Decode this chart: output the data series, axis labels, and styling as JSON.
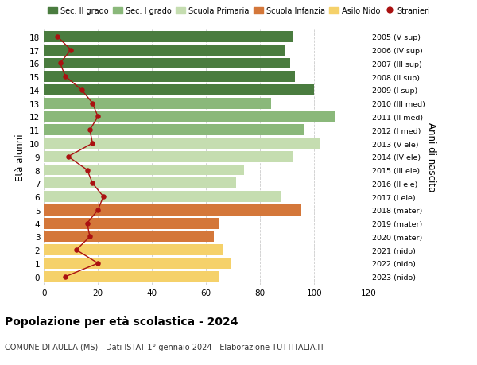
{
  "ages": [
    0,
    1,
    2,
    3,
    4,
    5,
    6,
    7,
    8,
    9,
    10,
    11,
    12,
    13,
    14,
    15,
    16,
    17,
    18
  ],
  "bar_values": [
    65,
    69,
    66,
    63,
    65,
    95,
    88,
    71,
    74,
    92,
    102,
    96,
    108,
    84,
    100,
    93,
    91,
    89,
    92
  ],
  "stranieri": [
    8,
    20,
    12,
    17,
    16,
    20,
    22,
    18,
    16,
    9,
    18,
    17,
    20,
    18,
    14,
    8,
    6,
    10,
    5
  ],
  "right_labels": [
    "2023 (nido)",
    "2022 (nido)",
    "2021 (nido)",
    "2020 (mater)",
    "2019 (mater)",
    "2018 (mater)",
    "2017 (I ele)",
    "2016 (II ele)",
    "2015 (III ele)",
    "2014 (IV ele)",
    "2013 (V ele)",
    "2012 (I med)",
    "2011 (II med)",
    "2010 (III med)",
    "2009 (I sup)",
    "2008 (II sup)",
    "2007 (III sup)",
    "2006 (IV sup)",
    "2005 (V sup)"
  ],
  "bar_colors": {
    "sec2": "#4a7c3f",
    "sec1": "#8ab87a",
    "primaria": "#c5ddb0",
    "infanzia": "#d4773a",
    "nido": "#f5d16a"
  },
  "age_school": {
    "sec2": [
      14,
      15,
      16,
      17,
      18
    ],
    "sec1": [
      11,
      12,
      13
    ],
    "primaria": [
      6,
      7,
      8,
      9,
      10
    ],
    "infanzia": [
      3,
      4,
      5
    ],
    "nido": [
      0,
      1,
      2
    ]
  },
  "stranieri_color": "#aa1111",
  "stranieri_line_color": "#aa1111",
  "title": "Popolazione per età scolastica - 2024",
  "subtitle": "COMUNE DI AULLA (MS) - Dati ISTAT 1° gennaio 2024 - Elaborazione TUTTITALIA.IT",
  "ylabel": "Età alunni",
  "ylabel2": "Anni di nascita",
  "xlim": [
    0,
    120
  ],
  "xticks": [
    0,
    20,
    40,
    60,
    80,
    100,
    120
  ],
  "legend_labels": [
    "Sec. II grado",
    "Sec. I grado",
    "Scuola Primaria",
    "Scuola Infanzia",
    "Asilo Nido",
    "Stranieri"
  ],
  "legend_colors": [
    "#4a7c3f",
    "#8ab87a",
    "#c5ddb0",
    "#d4773a",
    "#f5d16a",
    "#aa1111"
  ],
  "background_color": "#ffffff",
  "bar_height": 0.82,
  "grid_color": "#cccccc"
}
